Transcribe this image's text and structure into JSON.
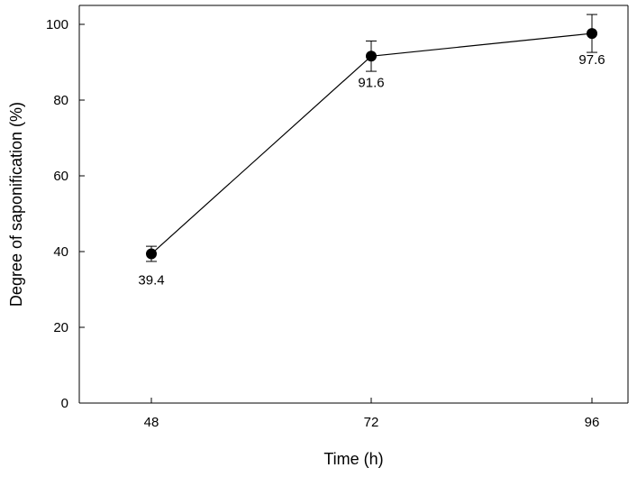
{
  "chart_data": {
    "type": "line",
    "title": "",
    "xlabel": "Time (h)",
    "ylabel": "Degree of saponification (%)",
    "x": [
      48,
      72,
      96
    ],
    "xticks": [
      "48",
      "72",
      "96"
    ],
    "ylim": [
      0,
      105
    ],
    "yticks": [
      "0",
      "20",
      "40",
      "60",
      "80",
      "100"
    ],
    "series": [
      {
        "values": [
          39.4,
          91.6,
          97.6
        ],
        "errors": [
          2.0,
          4.0,
          5.0
        ],
        "labels": [
          "39.4",
          "91.6",
          "97.6"
        ],
        "color": "#000000"
      }
    ],
    "grid": false,
    "legend": "none"
  }
}
